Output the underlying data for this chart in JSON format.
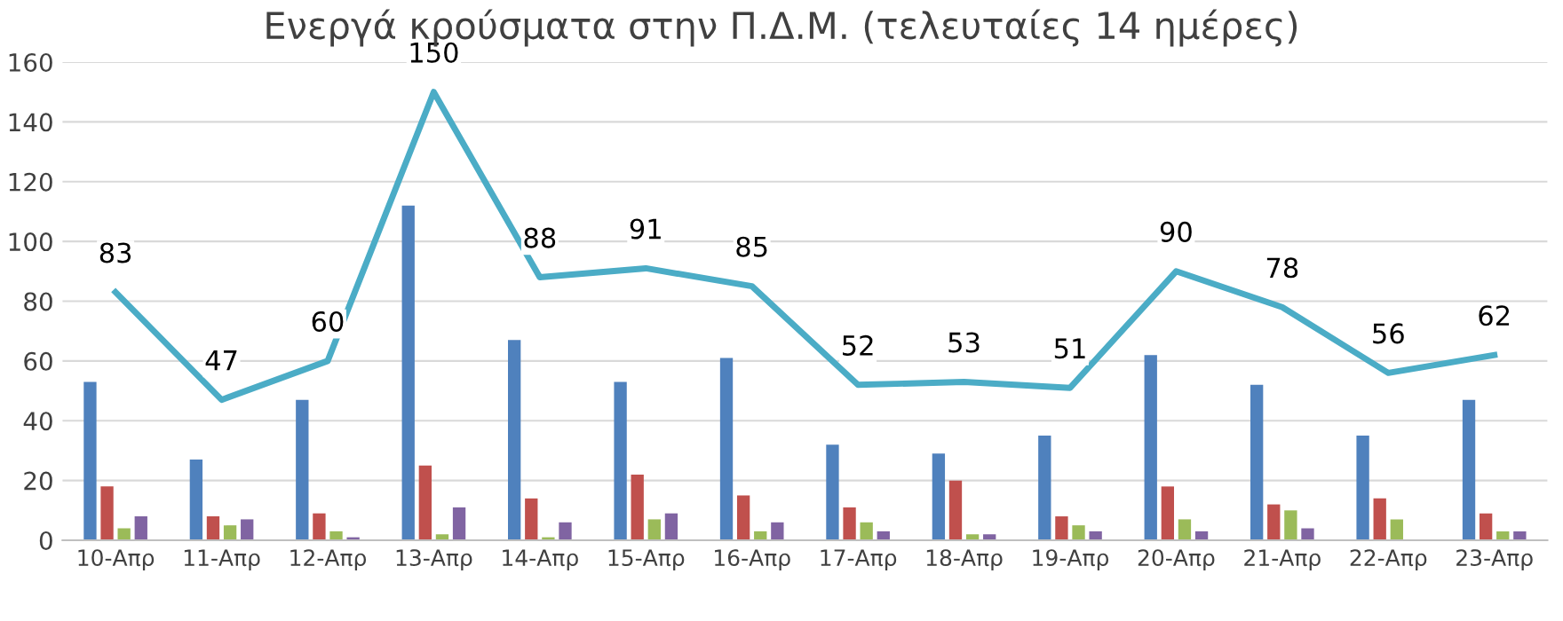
{
  "chart_data": {
    "type": "bar",
    "title": "Ενεργά κρούσματα στην Π.Δ.Μ. (τελευταίες 14 ημέρες)",
    "categories": [
      "10-Απρ",
      "11-Απρ",
      "12-Απρ",
      "13-Απρ",
      "14-Απρ",
      "15-Απρ",
      "16-Απρ",
      "17-Απρ",
      "18-Απρ",
      "19-Απρ",
      "20-Απρ",
      "21-Απρ",
      "22-Απρ",
      "23-Απρ"
    ],
    "series": [
      {
        "color": "#4f81bd",
        "values": [
          53,
          27,
          47,
          112,
          67,
          53,
          61,
          32,
          29,
          35,
          62,
          52,
          35,
          47
        ]
      },
      {
        "color": "#c0504d",
        "values": [
          18,
          8,
          9,
          25,
          14,
          22,
          15,
          11,
          20,
          8,
          18,
          12,
          14,
          9
        ]
      },
      {
        "color": "#9bbb59",
        "values": [
          4,
          5,
          3,
          2,
          1,
          7,
          3,
          6,
          2,
          5,
          7,
          10,
          7,
          3
        ]
      },
      {
        "color": "#8064a2",
        "values": [
          8,
          7,
          1,
          11,
          6,
          9,
          6,
          3,
          2,
          3,
          3,
          4,
          0,
          3
        ]
      },
      {
        "type": "line",
        "color": "#4bacc6",
        "values": [
          83,
          47,
          60,
          150,
          88,
          91,
          85,
          52,
          53,
          51,
          90,
          78,
          56,
          62
        ],
        "value_labels": [
          "83",
          "47",
          "60",
          "150",
          "88",
          "91",
          "85",
          "52",
          "53",
          "51",
          "90",
          "78",
          "56",
          "62"
        ]
      }
    ],
    "ylim": [
      0,
      160
    ],
    "yticks": [
      0,
      20,
      40,
      60,
      80,
      100,
      120,
      140,
      160
    ],
    "grid": "y",
    "legend": false
  }
}
